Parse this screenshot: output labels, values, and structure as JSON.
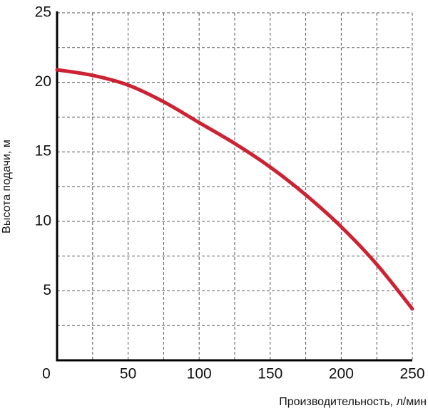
{
  "chart_data": {
    "type": "line",
    "x_label": "Производительность, л/мин",
    "y_label": "Высота подачи, м",
    "x": [
      0,
      25,
      50,
      75,
      100,
      125,
      150,
      175,
      200,
      225,
      250
    ],
    "series": [
      {
        "color": "#cc2233",
        "values": [
          20.9,
          20.5,
          19.8,
          18.6,
          17.1,
          15.6,
          13.9,
          11.9,
          9.6,
          6.9,
          3.7
        ]
      }
    ],
    "xlim": [
      0,
      250
    ],
    "ylim": [
      0,
      25
    ],
    "xticks": [
      0,
      50,
      100,
      150,
      200,
      250
    ],
    "yticks": [
      5,
      10,
      15,
      20,
      25
    ],
    "x_minor_ticks": [
      25,
      75,
      125,
      175,
      225
    ],
    "y_minor_ticks": [
      2.5,
      7.5,
      12.5,
      17.5,
      22.5
    ],
    "grid": true
  }
}
